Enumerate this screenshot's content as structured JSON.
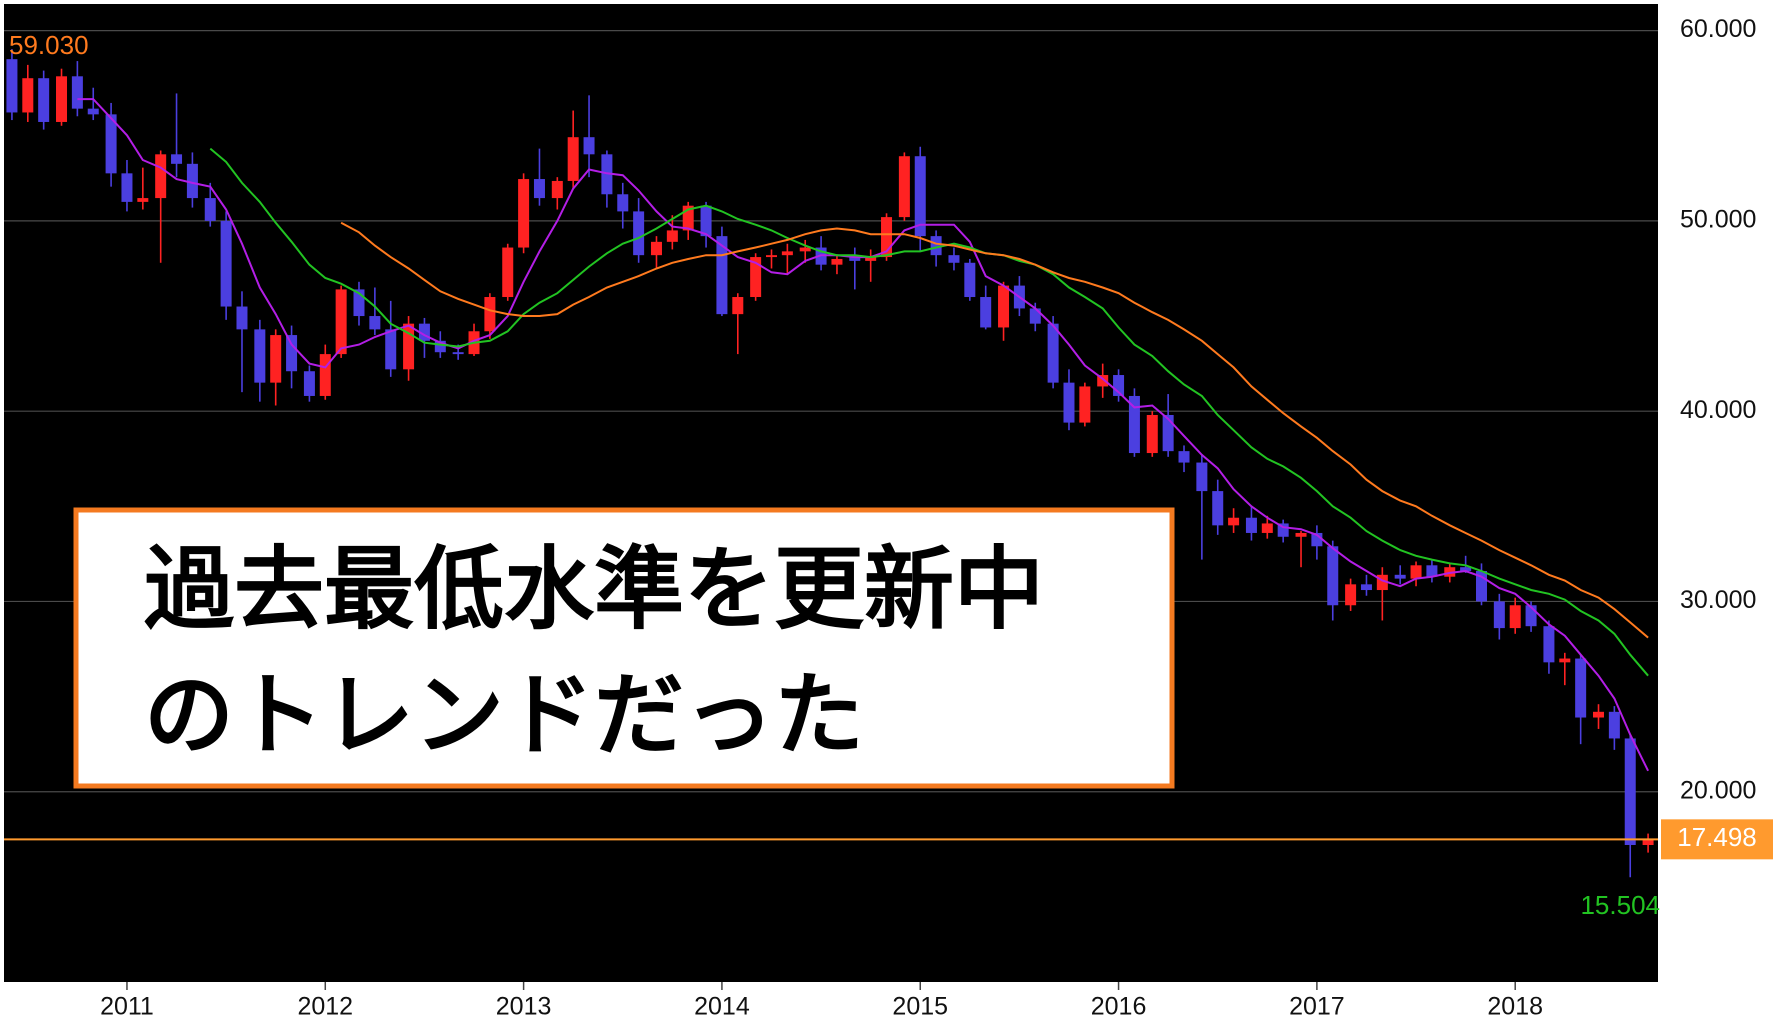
{
  "chart_data": {
    "type": "candlestick",
    "x": [
      2010.42,
      2010.5,
      2010.58,
      2010.67,
      2010.75,
      2010.83,
      2010.92,
      2011.0,
      2011.08,
      2011.17,
      2011.25,
      2011.33,
      2011.42,
      2011.5,
      2011.58,
      2011.67,
      2011.75,
      2011.83,
      2011.92,
      2012.0,
      2012.08,
      2012.17,
      2012.25,
      2012.33,
      2012.42,
      2012.5,
      2012.58,
      2012.67,
      2012.75,
      2012.83,
      2012.92,
      2013.0,
      2013.08,
      2013.17,
      2013.25,
      2013.33,
      2013.42,
      2013.5,
      2013.58,
      2013.67,
      2013.75,
      2013.83,
      2013.92,
      2014.0,
      2014.08,
      2014.17,
      2014.25,
      2014.33,
      2014.42,
      2014.5,
      2014.58,
      2014.67,
      2014.75,
      2014.83,
      2014.92,
      2015.0,
      2015.08,
      2015.17,
      2015.25,
      2015.33,
      2015.42,
      2015.5,
      2015.58,
      2015.67,
      2015.75,
      2015.83,
      2015.92,
      2016.0,
      2016.08,
      2016.17,
      2016.25,
      2016.33,
      2016.42,
      2016.5,
      2016.58,
      2016.67,
      2016.75,
      2016.83,
      2016.92,
      2017.0,
      2017.08,
      2017.17,
      2017.25,
      2017.33,
      2017.42,
      2017.5,
      2017.58,
      2017.67,
      2017.75,
      2017.83,
      2017.92,
      2018.0,
      2018.08,
      2018.17,
      2018.25,
      2018.33,
      2018.42,
      2018.5,
      2018.58,
      2018.67
    ],
    "open": [
      58.5,
      55.7,
      57.5,
      55.2,
      57.6,
      55.9,
      55.6,
      52.5,
      51.0,
      51.2,
      53.5,
      53.0,
      51.2,
      50.0,
      45.5,
      44.3,
      41.5,
      44.0,
      42.1,
      40.8,
      43.0,
      46.4,
      45.0,
      44.3,
      42.2,
      44.6,
      43.7,
      43.1,
      43.0,
      44.2,
      46.0,
      48.6,
      52.2,
      51.2,
      52.1,
      54.4,
      53.5,
      51.4,
      50.5,
      48.2,
      48.9,
      49.5,
      50.8,
      49.2,
      45.1,
      46.0,
      48.1,
      48.2,
      48.4,
      48.6,
      47.7,
      48.1,
      47.9,
      48.1,
      50.2,
      53.4,
      49.2,
      48.2,
      47.8,
      46.0,
      44.4,
      46.6,
      45.4,
      44.6,
      41.5,
      39.4,
      41.3,
      41.9,
      40.8,
      37.8,
      39.8,
      37.9,
      37.3,
      35.8,
      34.0,
      34.4,
      33.6,
      34.1,
      33.4,
      33.6,
      32.9,
      29.8,
      30.9,
      30.6,
      31.4,
      31.2,
      31.9,
      31.3,
      31.8,
      31.6,
      30.0,
      28.6,
      29.8,
      28.7,
      26.8,
      27.0,
      23.9,
      24.2,
      22.8,
      17.2
    ],
    "high": [
      59.03,
      58.2,
      57.9,
      58.0,
      58.4,
      57.0,
      56.2,
      53.2,
      52.8,
      53.7,
      56.7,
      53.6,
      52.0,
      50.5,
      46.3,
      44.8,
      44.3,
      44.5,
      42.4,
      43.5,
      46.6,
      46.8,
      46.5,
      45.8,
      45.0,
      44.9,
      44.2,
      43.5,
      44.6,
      46.2,
      48.8,
      52.5,
      53.8,
      52.3,
      55.8,
      56.6,
      53.7,
      52.0,
      51.2,
      49.2,
      50.3,
      51.0,
      51.0,
      49.7,
      46.2,
      48.3,
      48.5,
      48.8,
      49.0,
      49.2,
      48.2,
      48.6,
      48.5,
      50.4,
      53.6,
      53.9,
      49.5,
      48.6,
      48.0,
      46.6,
      46.8,
      47.1,
      45.7,
      45.0,
      42.2,
      41.5,
      42.5,
      42.2,
      41.2,
      40.0,
      40.9,
      38.2,
      37.7,
      36.4,
      34.9,
      35.0,
      34.5,
      34.3,
      33.7,
      34.0,
      33.2,
      31.2,
      31.4,
      31.8,
      31.9,
      32.1,
      32.2,
      32.0,
      32.4,
      32.0,
      30.4,
      30.2,
      30.0,
      29.0,
      27.3,
      27.2,
      24.6,
      24.5,
      23.0,
      17.8
    ],
    "low": [
      55.3,
      55.2,
      54.8,
      55.0,
      55.5,
      55.3,
      51.8,
      50.5,
      50.6,
      47.8,
      52.3,
      50.7,
      49.7,
      44.8,
      41.0,
      40.5,
      40.3,
      41.2,
      40.5,
      40.6,
      42.8,
      44.5,
      44.0,
      41.8,
      41.6,
      42.8,
      42.8,
      42.7,
      42.9,
      43.8,
      45.8,
      48.3,
      50.8,
      50.6,
      51.7,
      52.3,
      50.7,
      49.6,
      47.8,
      47.5,
      48.5,
      49.0,
      48.6,
      45.0,
      43.0,
      45.8,
      47.5,
      47.2,
      47.8,
      47.4,
      47.2,
      46.4,
      46.8,
      47.9,
      50.0,
      48.4,
      47.6,
      47.4,
      45.8,
      44.3,
      43.7,
      45.0,
      44.2,
      41.2,
      39.0,
      39.2,
      40.7,
      40.5,
      37.6,
      37.6,
      37.6,
      36.8,
      32.2,
      33.5,
      33.6,
      33.2,
      33.3,
      33.1,
      31.8,
      32.2,
      29.0,
      29.5,
      30.3,
      29.0,
      30.9,
      30.8,
      31.0,
      31.0,
      31.5,
      29.8,
      28.0,
      28.3,
      28.4,
      26.2,
      25.6,
      22.5,
      23.3,
      22.2,
      15.504,
      16.8
    ],
    "close": [
      55.7,
      57.5,
      55.2,
      57.6,
      55.9,
      55.6,
      52.5,
      51.0,
      51.2,
      53.5,
      53.0,
      51.2,
      50.0,
      45.5,
      44.3,
      41.5,
      44.0,
      42.1,
      40.8,
      43.0,
      46.4,
      45.0,
      44.3,
      42.2,
      44.6,
      43.7,
      43.1,
      43.0,
      44.2,
      46.0,
      48.6,
      52.2,
      51.2,
      52.1,
      54.4,
      53.5,
      51.4,
      50.5,
      48.2,
      48.9,
      49.5,
      50.8,
      49.2,
      45.1,
      46.0,
      48.1,
      48.2,
      48.4,
      48.6,
      47.7,
      48.0,
      47.9,
      48.1,
      50.2,
      53.4,
      49.2,
      48.2,
      47.8,
      46.0,
      44.4,
      46.6,
      45.4,
      44.6,
      41.5,
      39.4,
      41.3,
      41.9,
      40.8,
      37.8,
      39.8,
      37.9,
      37.3,
      35.8,
      34.0,
      34.4,
      33.6,
      34.1,
      33.4,
      33.6,
      32.9,
      29.8,
      30.9,
      30.6,
      31.4,
      31.2,
      31.9,
      31.3,
      31.8,
      31.6,
      30.0,
      28.6,
      29.8,
      28.7,
      26.8,
      27.0,
      23.9,
      24.2,
      22.8,
      17.2,
      17.498
    ],
    "up_color": "#ff2222",
    "down_color": "#4b3fe0",
    "series": [
      {
        "color": "#b31ee6",
        "values": [
          null,
          null,
          null,
          null,
          56.4,
          56.4,
          55.4,
          54.5,
          53.2,
          52.8,
          52.2,
          52.0,
          51.8,
          50.6,
          48.8,
          46.5,
          45.1,
          43.5,
          42.5,
          42.3,
          43.3,
          43.5,
          43.9,
          44.2,
          44.5,
          44.0,
          43.6,
          43.3,
          43.7,
          44.0,
          45.0,
          46.8,
          48.4,
          50.0,
          51.7,
          52.7,
          52.5,
          52.4,
          51.6,
          50.5,
          49.7,
          49.6,
          49.3,
          48.7,
          48.1,
          47.8,
          47.3,
          47.2,
          47.9,
          48.2,
          48.2,
          48.1,
          48.1,
          48.4,
          49.5,
          49.8,
          49.8,
          49.8,
          48.9,
          47.1,
          46.6,
          46.0,
          45.4,
          44.5,
          43.5,
          42.4,
          41.7,
          41.0,
          40.2,
          40.3,
          39.6,
          38.7,
          37.7,
          37.0,
          35.9,
          35.0,
          34.4,
          33.9,
          33.8,
          33.5,
          32.8,
          32.1,
          31.6,
          31.1,
          30.8,
          31.2,
          31.3,
          31.5,
          31.6,
          31.3,
          30.7,
          30.4,
          29.7,
          28.8,
          28.2,
          27.2,
          26.1,
          24.9,
          23.0,
          21.1
        ]
      },
      {
        "color": "#22c322",
        "values": [
          null,
          null,
          null,
          null,
          null,
          null,
          null,
          null,
          null,
          null,
          null,
          null,
          53.8,
          53.1,
          52.0,
          51.0,
          49.9,
          48.9,
          47.7,
          47.0,
          46.7,
          46.2,
          45.5,
          44.6,
          44.1,
          43.6,
          43.5,
          43.4,
          43.6,
          43.7,
          44.2,
          45.1,
          45.7,
          46.2,
          46.9,
          47.6,
          48.3,
          48.8,
          49.1,
          49.6,
          50.1,
          50.6,
          50.8,
          50.5,
          50.1,
          49.8,
          49.5,
          49.1,
          48.7,
          48.4,
          48.2,
          48.2,
          48.1,
          48.2,
          48.4,
          48.4,
          48.6,
          48.8,
          48.6,
          48.3,
          48.2,
          47.9,
          47.7,
          47.2,
          46.5,
          46.0,
          45.4,
          44.4,
          43.5,
          42.9,
          42.1,
          41.4,
          40.8,
          39.8,
          39.0,
          38.1,
          37.5,
          37.1,
          36.5,
          35.8,
          35.0,
          34.4,
          33.7,
          33.2,
          32.7,
          32.4,
          32.2,
          32.0,
          31.9,
          31.6,
          31.2,
          30.9,
          30.6,
          30.4,
          30.1,
          29.5,
          29.0,
          28.3,
          27.2,
          26.1
        ]
      },
      {
        "color": "#ff7a1e",
        "values": [
          null,
          null,
          null,
          null,
          null,
          null,
          null,
          null,
          null,
          null,
          null,
          null,
          null,
          null,
          null,
          null,
          null,
          null,
          null,
          null,
          49.9,
          49.4,
          48.7,
          48.1,
          47.5,
          46.9,
          46.3,
          45.9,
          45.6,
          45.3,
          45.1,
          45.0,
          45.0,
          45.1,
          45.6,
          46.0,
          46.5,
          46.8,
          47.1,
          47.5,
          47.8,
          48.0,
          48.2,
          48.2,
          48.4,
          48.6,
          48.8,
          49.0,
          49.3,
          49.5,
          49.6,
          49.5,
          49.3,
          49.3,
          49.3,
          49.1,
          48.8,
          48.7,
          48.5,
          48.3,
          48.2,
          48.0,
          47.7,
          47.3,
          47.0,
          46.8,
          46.5,
          46.2,
          45.7,
          45.2,
          44.8,
          44.3,
          43.7,
          43.0,
          42.3,
          41.3,
          40.6,
          39.9,
          39.2,
          38.6,
          37.9,
          37.2,
          36.4,
          35.8,
          35.3,
          35.0,
          34.5,
          34.0,
          33.6,
          33.2,
          32.7,
          32.3,
          31.9,
          31.4,
          31.1,
          30.6,
          30.2,
          29.6,
          28.9,
          28.1
        ]
      }
    ],
    "xlim": [
      2010.38,
      2018.72
    ],
    "ylim": [
      10,
      61.4
    ],
    "xticks": [
      2011,
      2012,
      2013,
      2014,
      2015,
      2016,
      2017,
      2018
    ],
    "yticks": [
      {
        "value": 20,
        "label": "20.000"
      },
      {
        "value": 30,
        "label": "30.000"
      },
      {
        "value": 40,
        "label": "40.000"
      },
      {
        "value": 50,
        "label": "50.000"
      },
      {
        "value": 60,
        "label": "60.000"
      }
    ],
    "grid": true,
    "max_label": {
      "value": 59.03,
      "label": "59.030"
    },
    "max_label_color": "#ff7a1e",
    "min_label": 15.504,
    "min_label_color": "#22c322",
    "last_price": 17.498,
    "last_price_color": "#ff9a2e",
    "annotation_lines": [
      "過去最低水準を更新中",
      "のトレンドだった"
    ]
  }
}
